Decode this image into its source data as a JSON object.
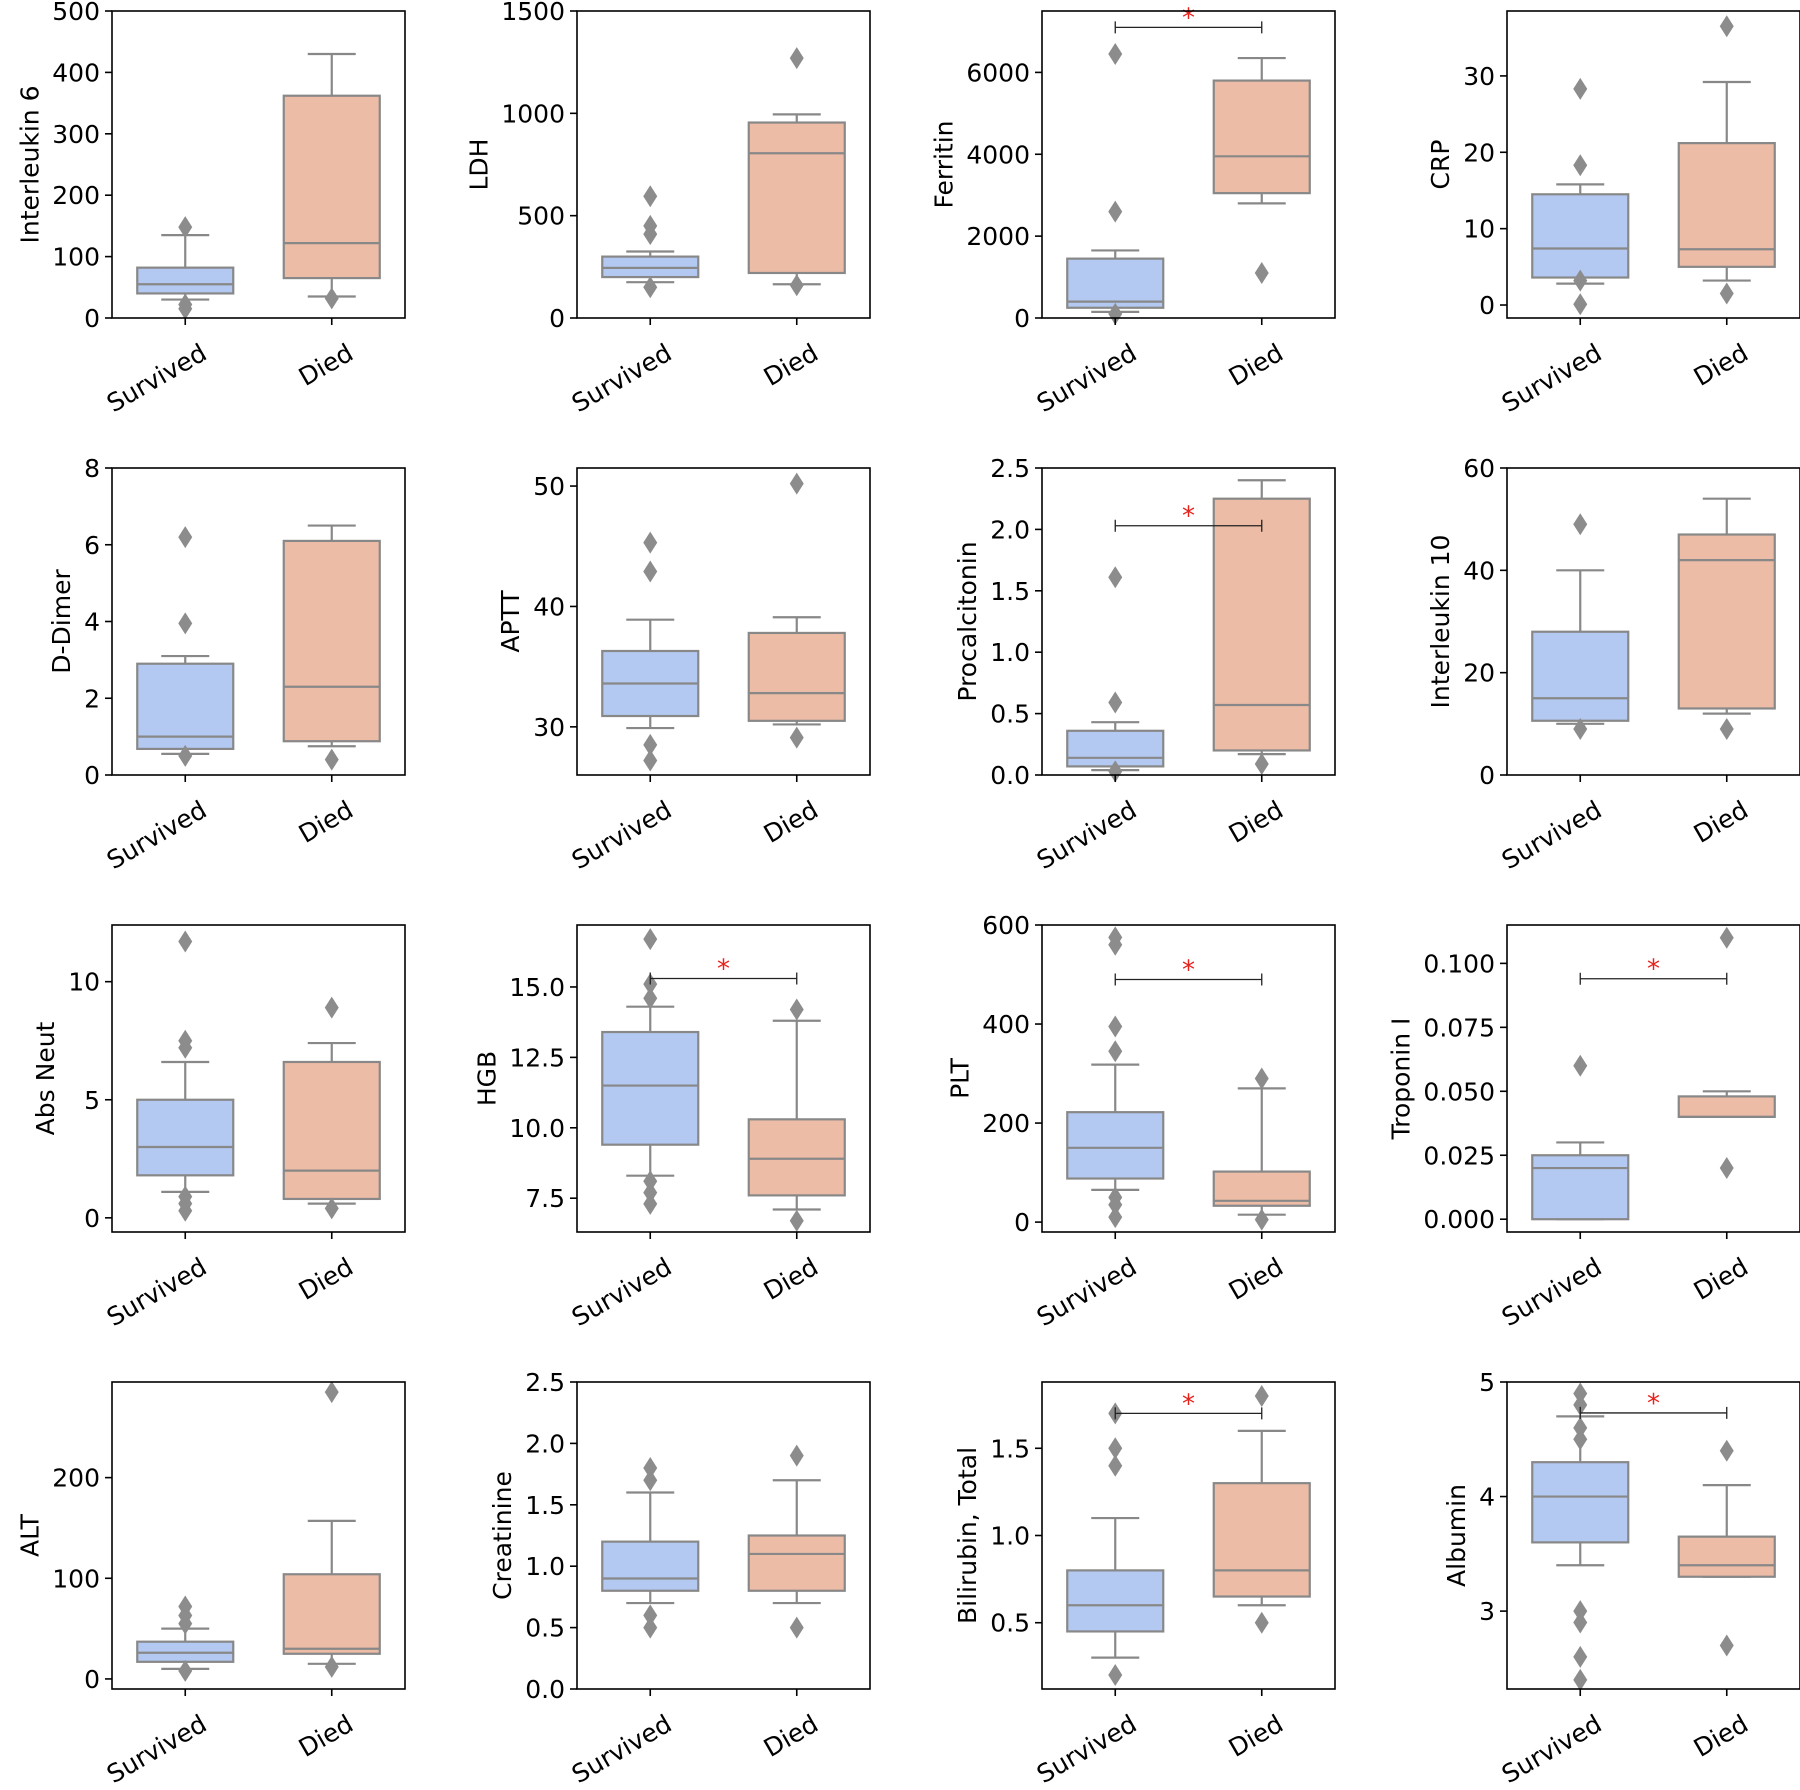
{
  "figure": {
    "columns": 4,
    "rows": 4
  },
  "colors": {
    "survived_fill": "#b3c9f2",
    "died_fill": "#edbca6",
    "box_edge": "#888888",
    "flier": "#8c8c8c",
    "axis": "#000000",
    "significance": "#e8211b"
  },
  "chart_data": [
    {
      "type": "box",
      "ylabel": "Interleukin 6",
      "categories": [
        "Survived",
        "Died"
      ],
      "ylim": [
        0,
        500
      ],
      "yticks": [
        0,
        100,
        200,
        300,
        400,
        500
      ],
      "tick_labels": [
        "0",
        "100",
        "200",
        "300",
        "400",
        "500"
      ],
      "groups": [
        {
          "name": "Survived",
          "whislo": 30,
          "q1": 40,
          "med": 55,
          "q3": 82,
          "whishi": 135,
          "fliers": [
            15,
            22,
            148
          ]
        },
        {
          "name": "Died",
          "whislo": 35,
          "q1": 65,
          "med": 122,
          "q3": 362,
          "whishi": 430,
          "fliers": [
            32
          ]
        }
      ],
      "significance": null
    },
    {
      "type": "box",
      "ylabel": "LDH",
      "categories": [
        "Survived",
        "Died"
      ],
      "ylim": [
        0,
        1500
      ],
      "yticks": [
        0,
        500,
        1000,
        1500
      ],
      "tick_labels": [
        "0",
        "500",
        "1000",
        "1500"
      ],
      "groups": [
        {
          "name": "Survived",
          "whislo": 175,
          "q1": 200,
          "med": 245,
          "q3": 300,
          "whishi": 325,
          "fliers": [
            150,
            410,
            450,
            595
          ]
        },
        {
          "name": "Died",
          "whislo": 165,
          "q1": 220,
          "med": 805,
          "q3": 955,
          "whishi": 995,
          "fliers": [
            160,
            1270
          ]
        }
      ],
      "significance": null
    },
    {
      "type": "box",
      "ylabel": "Ferritin",
      "categories": [
        "Survived",
        "Died"
      ],
      "ylim": [
        0,
        7500
      ],
      "yticks": [
        0,
        2000,
        4000,
        6000
      ],
      "tick_labels": [
        "0",
        "2000",
        "4000",
        "6000"
      ],
      "groups": [
        {
          "name": "Survived",
          "whislo": 150,
          "q1": 250,
          "med": 400,
          "q3": 1450,
          "whishi": 1650,
          "fliers": [
            100,
            2600,
            6450
          ]
        },
        {
          "name": "Died",
          "whislo": 2800,
          "q1": 3050,
          "med": 3950,
          "q3": 5800,
          "whishi": 6350,
          "fliers": [
            1100
          ]
        }
      ],
      "significance": {
        "y": 7100,
        "label": "*"
      }
    },
    {
      "type": "box",
      "ylabel": "CRP",
      "categories": [
        "Survived",
        "Died"
      ],
      "ylim": [
        -1.7,
        38.5
      ],
      "yticks": [
        0,
        10,
        20,
        30
      ],
      "tick_labels": [
        "0",
        "10",
        "20",
        "30"
      ],
      "groups": [
        {
          "name": "Survived",
          "whislo": 2.8,
          "q1": 3.6,
          "med": 7.4,
          "q3": 14.5,
          "whishi": 15.8,
          "fliers": [
            0.1,
            3.2,
            18.3,
            28.3
          ]
        },
        {
          "name": "Died",
          "whislo": 3.2,
          "q1": 5.0,
          "med": 7.3,
          "q3": 21.2,
          "whishi": 29.2,
          "fliers": [
            1.5,
            36.5
          ]
        }
      ],
      "significance": null
    },
    {
      "type": "box",
      "ylabel": "D-Dimer",
      "categories": [
        "Survived",
        "Died"
      ],
      "ylim": [
        0,
        8
      ],
      "yticks": [
        0,
        2,
        4,
        6,
        8
      ],
      "tick_labels": [
        "0",
        "2",
        "4",
        "6",
        "8"
      ],
      "groups": [
        {
          "name": "Survived",
          "whislo": 0.55,
          "q1": 0.68,
          "med": 1.0,
          "q3": 2.9,
          "whishi": 3.1,
          "fliers": [
            0.5,
            3.95,
            6.2
          ]
        },
        {
          "name": "Died",
          "whislo": 0.75,
          "q1": 0.88,
          "med": 2.3,
          "q3": 6.1,
          "whishi": 6.5,
          "fliers": [
            0.4
          ]
        }
      ],
      "significance": null
    },
    {
      "type": "box",
      "ylabel": "APTT",
      "categories": [
        "Survived",
        "Died"
      ],
      "ylim": [
        26,
        51.5
      ],
      "yticks": [
        30,
        40,
        50
      ],
      "tick_labels": [
        "30",
        "40",
        "50"
      ],
      "groups": [
        {
          "name": "Survived",
          "whislo": 29.9,
          "q1": 30.9,
          "med": 33.6,
          "q3": 36.3,
          "whishi": 38.9,
          "fliers": [
            27.2,
            28.5,
            42.9,
            45.3
          ]
        },
        {
          "name": "Died",
          "whislo": 30.2,
          "q1": 30.5,
          "med": 32.8,
          "q3": 37.8,
          "whishi": 39.1,
          "fliers": [
            29.1,
            50.2
          ]
        }
      ],
      "significance": null
    },
    {
      "type": "box",
      "ylabel": "Procalcitonin",
      "categories": [
        "Survived",
        "Died"
      ],
      "ylim": [
        0,
        2.5
      ],
      "yticks": [
        0,
        0.5,
        1.0,
        1.5,
        2.0,
        2.5
      ],
      "tick_labels": [
        "0.0",
        "0.5",
        "1.0",
        "1.5",
        "2.0",
        "2.5"
      ],
      "groups": [
        {
          "name": "Survived",
          "whislo": 0.04,
          "q1": 0.07,
          "med": 0.14,
          "q3": 0.36,
          "whishi": 0.43,
          "fliers": [
            0.03,
            0.59,
            1.61
          ]
        },
        {
          "name": "Died",
          "whislo": 0.17,
          "q1": 0.2,
          "med": 0.57,
          "q3": 2.25,
          "whishi": 2.4,
          "fliers": [
            0.09
          ]
        }
      ],
      "significance": {
        "y": 2.03,
        "label": "*"
      }
    },
    {
      "type": "box",
      "ylabel": "Interleukin 10",
      "categories": [
        "Survived",
        "Died"
      ],
      "ylim": [
        0,
        60
      ],
      "yticks": [
        0,
        20,
        40,
        60
      ],
      "tick_labels": [
        "0",
        "20",
        "40",
        "60"
      ],
      "groups": [
        {
          "name": "Survived",
          "whislo": 10,
          "q1": 10.6,
          "med": 15,
          "q3": 28,
          "whishi": 40,
          "fliers": [
            9,
            49
          ]
        },
        {
          "name": "Died",
          "whislo": 12,
          "q1": 13,
          "med": 42,
          "q3": 47,
          "whishi": 54,
          "fliers": [
            9
          ]
        }
      ],
      "significance": null
    },
    {
      "type": "box",
      "ylabel": "Abs Neut",
      "categories": [
        "Survived",
        "Died"
      ],
      "ylim": [
        -0.6,
        12.4
      ],
      "yticks": [
        0,
        5,
        10
      ],
      "tick_labels": [
        "0",
        "5",
        "10"
      ],
      "groups": [
        {
          "name": "Survived",
          "whislo": 1.1,
          "q1": 1.8,
          "med": 3.0,
          "q3": 5.0,
          "whishi": 6.6,
          "fliers": [
            0.3,
            0.6,
            0.9,
            7.2,
            7.5,
            11.7
          ]
        },
        {
          "name": "Died",
          "whislo": 0.6,
          "q1": 0.8,
          "med": 2.0,
          "q3": 6.6,
          "whishi": 7.4,
          "fliers": [
            0.4,
            8.9
          ]
        }
      ],
      "significance": null
    },
    {
      "type": "box",
      "ylabel": "HGB",
      "categories": [
        "Survived",
        "Died"
      ],
      "ylim": [
        6.3,
        17.2
      ],
      "yticks": [
        7.5,
        10.0,
        12.5,
        15.0
      ],
      "tick_labels": [
        "7.5",
        "10.0",
        "12.5",
        "15.0"
      ],
      "groups": [
        {
          "name": "Survived",
          "whislo": 8.3,
          "q1": 9.4,
          "med": 11.5,
          "q3": 13.4,
          "whishi": 14.3,
          "fliers": [
            7.3,
            7.7,
            8.1,
            14.6,
            15.1,
            16.7
          ]
        },
        {
          "name": "Died",
          "whislo": 7.1,
          "q1": 7.6,
          "med": 8.9,
          "q3": 10.3,
          "whishi": 13.8,
          "fliers": [
            6.7,
            14.2
          ]
        }
      ],
      "significance": {
        "y": 15.3,
        "label": "*"
      }
    },
    {
      "type": "box",
      "ylabel": "PLT",
      "categories": [
        "Survived",
        "Died"
      ],
      "ylim": [
        -20,
        600
      ],
      "yticks": [
        0,
        200,
        400,
        600
      ],
      "tick_labels": [
        "0",
        "200",
        "400",
        "600"
      ],
      "groups": [
        {
          "name": "Survived",
          "whislo": 65,
          "q1": 88,
          "med": 150,
          "q3": 222,
          "whishi": 318,
          "fliers": [
            10,
            35,
            50,
            345,
            395,
            560,
            575
          ]
        },
        {
          "name": "Died",
          "whislo": 15,
          "q1": 33,
          "med": 43,
          "q3": 102,
          "whishi": 270,
          "fliers": [
            5,
            290
          ]
        }
      ],
      "significance": {
        "y": 490,
        "label": "*"
      }
    },
    {
      "type": "box",
      "ylabel": "Troponin I",
      "categories": [
        "Survived",
        "Died"
      ],
      "ylim": [
        -0.005,
        0.115
      ],
      "yticks": [
        0,
        0.025,
        0.05,
        0.075,
        0.1
      ],
      "tick_labels": [
        "0.000",
        "0.025",
        "0.050",
        "0.075",
        "0.100"
      ],
      "groups": [
        {
          "name": "Survived",
          "whislo": 0.0,
          "q1": 0.0,
          "med": 0.02,
          "q3": 0.025,
          "whishi": 0.03,
          "fliers": [
            0.06
          ]
        },
        {
          "name": "Died",
          "whislo": 0.04,
          "q1": 0.04,
          "med": 0.04,
          "q3": 0.048,
          "whishi": 0.05,
          "fliers": [
            0.02,
            0.11
          ]
        }
      ],
      "significance": {
        "y": 0.094,
        "label": "*"
      }
    },
    {
      "type": "box",
      "ylabel": "ALT",
      "categories": [
        "Survived",
        "Died"
      ],
      "ylim": [
        -10,
        295
      ],
      "yticks": [
        0,
        100,
        200
      ],
      "tick_labels": [
        "0",
        "100",
        "200"
      ],
      "groups": [
        {
          "name": "Survived",
          "whislo": 10,
          "q1": 17,
          "med": 26,
          "q3": 37,
          "whishi": 50,
          "fliers": [
            8,
            55,
            63,
            72
          ]
        },
        {
          "name": "Died",
          "whislo": 15,
          "q1": 25,
          "med": 30,
          "q3": 104,
          "whishi": 157,
          "fliers": [
            12,
            285
          ]
        }
      ],
      "significance": null
    },
    {
      "type": "box",
      "ylabel": "Creatinine",
      "categories": [
        "Survived",
        "Died"
      ],
      "ylim": [
        0,
        2.5
      ],
      "yticks": [
        0,
        0.5,
        1.0,
        1.5,
        2.0,
        2.5
      ],
      "tick_labels": [
        "0.0",
        "0.5",
        "1.0",
        "1.5",
        "2.0",
        "2.5"
      ],
      "groups": [
        {
          "name": "Survived",
          "whislo": 0.7,
          "q1": 0.8,
          "med": 0.9,
          "q3": 1.2,
          "whishi": 1.6,
          "fliers": [
            0.5,
            0.6,
            1.7,
            1.8
          ]
        },
        {
          "name": "Died",
          "whislo": 0.7,
          "q1": 0.8,
          "med": 1.1,
          "q3": 1.25,
          "whishi": 1.7,
          "fliers": [
            0.5,
            1.9
          ]
        }
      ],
      "significance": null
    },
    {
      "type": "box",
      "ylabel": "Bilirubin, Total",
      "categories": [
        "Survived",
        "Died"
      ],
      "ylim": [
        0.12,
        1.88
      ],
      "yticks": [
        0.5,
        1.0,
        1.5
      ],
      "tick_labels": [
        "0.5",
        "1.0",
        "1.5"
      ],
      "groups": [
        {
          "name": "Survived",
          "whislo": 0.3,
          "q1": 0.45,
          "med": 0.6,
          "q3": 0.8,
          "whishi": 1.1,
          "fliers": [
            0.2,
            1.4,
            1.5,
            1.7
          ]
        },
        {
          "name": "Died",
          "whislo": 0.6,
          "q1": 0.65,
          "med": 0.8,
          "q3": 1.3,
          "whishi": 1.6,
          "fliers": [
            0.5,
            1.8
          ]
        }
      ],
      "significance": {
        "y": 1.7,
        "label": "*"
      }
    },
    {
      "type": "box",
      "ylabel": "Albumin",
      "categories": [
        "Survived",
        "Died"
      ],
      "ylim": [
        2.32,
        5.0
      ],
      "yticks": [
        3,
        4,
        5
      ],
      "tick_labels": [
        "3",
        "4",
        "5"
      ],
      "groups": [
        {
          "name": "Survived",
          "whislo": 3.4,
          "q1": 3.6,
          "med": 4.0,
          "q3": 4.3,
          "whishi": 4.7,
          "fliers": [
            2.4,
            2.6,
            2.9,
            3.0,
            4.5,
            4.6,
            4.8,
            4.9
          ]
        },
        {
          "name": "Died",
          "whislo": 3.3,
          "q1": 3.3,
          "med": 3.4,
          "q3": 3.65,
          "whishi": 4.1,
          "fliers": [
            2.7,
            4.4
          ]
        }
      ],
      "significance": {
        "y": 4.73,
        "label": "*"
      }
    }
  ]
}
